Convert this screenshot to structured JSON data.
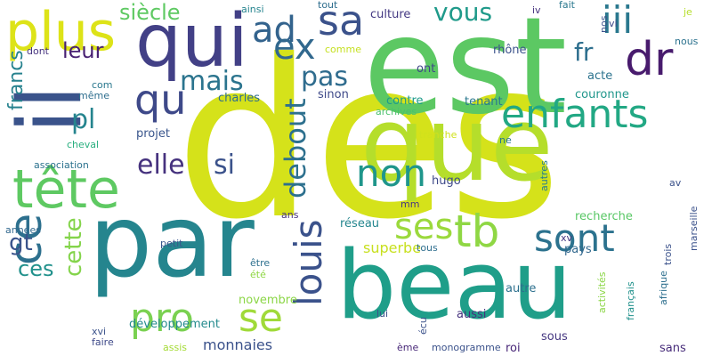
{
  "words": [
    {
      "text": "des",
      "color": "#d5e21a",
      "vertical": false
    },
    {
      "text": "est",
      "color": "#5cc863",
      "vertical": false
    },
    {
      "text": "que",
      "color": "#b5de2b",
      "vertical": false
    },
    {
      "text": "par",
      "color": "#25858e",
      "vertical": false
    },
    {
      "text": "beau",
      "color": "#1f9e89",
      "vertical": false
    },
    {
      "text": "il",
      "color": "#3a538b",
      "vertical": true
    },
    {
      "text": "qui",
      "color": "#424086",
      "vertical": false
    },
    {
      "text": "plus",
      "color": "#dde318",
      "vertical": false
    },
    {
      "text": "tête",
      "color": "#5ec962",
      "vertical": false
    },
    {
      "text": "enfants",
      "color": "#22a884",
      "vertical": false
    },
    {
      "text": "dr",
      "color": "#481b6d",
      "vertical": false
    },
    {
      "text": "iii",
      "color": "#2a788e",
      "vertical": false
    },
    {
      "text": "sa",
      "color": "#3b528b",
      "vertical": false
    },
    {
      "text": "ad",
      "color": "#33638d",
      "vertical": false
    },
    {
      "text": "ex",
      "color": "#31688e",
      "vertical": false
    },
    {
      "text": "qu",
      "color": "#3e4989",
      "vertical": false
    },
    {
      "text": "pl",
      "color": "#25848e",
      "vertical": false
    },
    {
      "text": "ce",
      "color": "#2d708e",
      "vertical": true
    },
    {
      "text": "pro",
      "color": "#7ad151",
      "vertical": false
    },
    {
      "text": "se",
      "color": "#a0da39",
      "vertical": false
    },
    {
      "text": "louis",
      "color": "#3b528b",
      "vertical": true
    },
    {
      "text": "sont",
      "color": "#2c728e",
      "vertical": false
    },
    {
      "text": "tb",
      "color": "#8fd744",
      "vertical": false
    },
    {
      "text": "ses",
      "color": "#9bd93c",
      "vertical": false
    },
    {
      "text": "non",
      "color": "#1f968b",
      "vertical": false
    },
    {
      "text": "debout",
      "color": "#2d708e",
      "vertical": true
    },
    {
      "text": "cette",
      "color": "#84d44b",
      "vertical": true
    },
    {
      "text": "elle",
      "color": "#46327e",
      "vertical": false
    },
    {
      "text": "si",
      "color": "#3b528b",
      "vertical": false
    },
    {
      "text": "mais",
      "color": "#2b748e",
      "vertical": false
    },
    {
      "text": "pas",
      "color": "#2f6c8e",
      "vertical": false
    },
    {
      "text": "leur",
      "color": "#482173",
      "vertical": false
    },
    {
      "text": "vous",
      "color": "#1f9a8a",
      "vertical": false
    },
    {
      "text": "fr",
      "color": "#2e6f8e",
      "vertical": false
    },
    {
      "text": "siècle",
      "color": "#5ec962",
      "vertical": false
    },
    {
      "text": "francs",
      "color": "#26828e",
      "vertical": true
    },
    {
      "text": "gt",
      "color": "#3a538b",
      "vertical": false
    },
    {
      "text": "ces",
      "color": "#21918c",
      "vertical": false
    },
    {
      "text": "monnaies",
      "color": "#3b528b",
      "vertical": false
    },
    {
      "text": "superbe",
      "color": "#c8e020",
      "vertical": false
    },
    {
      "text": "charles",
      "color": "#2e6d8e",
      "vertical": false
    },
    {
      "text": "culture",
      "color": "#443983",
      "vertical": false
    },
    {
      "text": "rhône",
      "color": "#3b528b",
      "vertical": false
    },
    {
      "text": "couronne",
      "color": "#1f968b",
      "vertical": false
    },
    {
      "text": "tenant",
      "color": "#2a788e",
      "vertical": false
    },
    {
      "text": "recherche",
      "color": "#58c765",
      "vertical": false
    },
    {
      "text": "réseau",
      "color": "#24868e",
      "vertical": false
    },
    {
      "text": "hugo",
      "color": "#3e4989",
      "vertical": false
    },
    {
      "text": "développement",
      "color": "#238a8d",
      "vertical": false
    },
    {
      "text": "novembre",
      "color": "#8bd646",
      "vertical": false
    },
    {
      "text": "aussi",
      "color": "#46327e",
      "vertical": false
    },
    {
      "text": "autre",
      "color": "#2d708e",
      "vertical": false
    },
    {
      "text": "sinon",
      "color": "#3e4989",
      "vertical": false
    },
    {
      "text": "projet",
      "color": "#39558c",
      "vertical": false
    },
    {
      "text": "contre",
      "color": "#1e9b8a",
      "vertical": false
    },
    {
      "text": "ont",
      "color": "#3f4788",
      "vertical": false
    },
    {
      "text": "acte",
      "color": "#2c738e",
      "vertical": false
    },
    {
      "text": "pays",
      "color": "#31688e",
      "vertical": false
    },
    {
      "text": "roi",
      "color": "#482677",
      "vertical": false
    },
    {
      "text": "sous",
      "color": "#453781",
      "vertical": false
    },
    {
      "text": "sans",
      "color": "#472c7a",
      "vertical": false
    },
    {
      "text": "assis",
      "color": "#a5db36",
      "vertical": false
    },
    {
      "text": "faire",
      "color": "#3e4989",
      "vertical": false
    },
    {
      "text": "xvi",
      "color": "#3b528b",
      "vertical": false
    },
    {
      "text": "ainsi",
      "color": "#25848e",
      "vertical": false
    },
    {
      "text": "comme",
      "color": "#c5e021",
      "vertical": false
    },
    {
      "text": "dont",
      "color": "#46337f",
      "vertical": false
    },
    {
      "text": "même",
      "color": "#2e6e8e",
      "vertical": false
    },
    {
      "text": "com",
      "color": "#2a788e",
      "vertical": false
    },
    {
      "text": "cheval",
      "color": "#29af7f",
      "vertical": false
    },
    {
      "text": "association",
      "color": "#2c728e",
      "vertical": false
    },
    {
      "text": "années",
      "color": "#31688e",
      "vertical": false
    },
    {
      "text": "petit",
      "color": "#39568c",
      "vertical": false
    },
    {
      "text": "être",
      "color": "#2d708e",
      "vertical": false
    },
    {
      "text": "été",
      "color": "#8fd744",
      "vertical": false
    },
    {
      "text": "lui",
      "color": "#3b528b",
      "vertical": false
    },
    {
      "text": "ème",
      "color": "#482878",
      "vertical": false
    },
    {
      "text": "monogramme",
      "color": "#3b528b",
      "vertical": false
    },
    {
      "text": "tout",
      "color": "#2e6e8e",
      "vertical": false
    },
    {
      "text": "ans",
      "color": "#46337f",
      "vertical": false
    },
    {
      "text": "mm",
      "color": "#453882",
      "vertical": false
    },
    {
      "text": "tranche",
      "color": "#d0e11c",
      "vertical": false
    },
    {
      "text": "ne",
      "color": "#2a788e",
      "vertical": false
    },
    {
      "text": "archives",
      "color": "#4ac16d",
      "vertical": false
    },
    {
      "text": "tous",
      "color": "#2e6e8e",
      "vertical": false
    },
    {
      "text": "iv",
      "color": "#46337f",
      "vertical": false
    },
    {
      "text": "fait",
      "color": "#2a788e",
      "vertical": false
    },
    {
      "text": "je",
      "color": "#b5de2b",
      "vertical": false
    },
    {
      "text": "nous",
      "color": "#2c728e",
      "vertical": false
    },
    {
      "text": "vi",
      "color": "#3e4989",
      "vertical": false
    },
    {
      "text": "av",
      "color": "#3b528b",
      "vertical": false
    },
    {
      "text": "xv",
      "color": "#453781",
      "vertical": false
    },
    {
      "text": "nos",
      "color": "#3b528b",
      "vertical": true
    },
    {
      "text": "autres",
      "color": "#287d8e",
      "vertical": true
    },
    {
      "text": "trois",
      "color": "#3b528b",
      "vertical": true
    },
    {
      "text": "afrique",
      "color": "#2e6f8e",
      "vertical": true
    },
    {
      "text": "marseille",
      "color": "#3b528b",
      "vertical": true
    },
    {
      "text": "français",
      "color": "#21918c",
      "vertical": true
    },
    {
      "text": "activités",
      "color": "#8bd646",
      "vertical": true
    },
    {
      "text": "écu",
      "color": "#3b528b",
      "vertical": true
    }
  ]
}
